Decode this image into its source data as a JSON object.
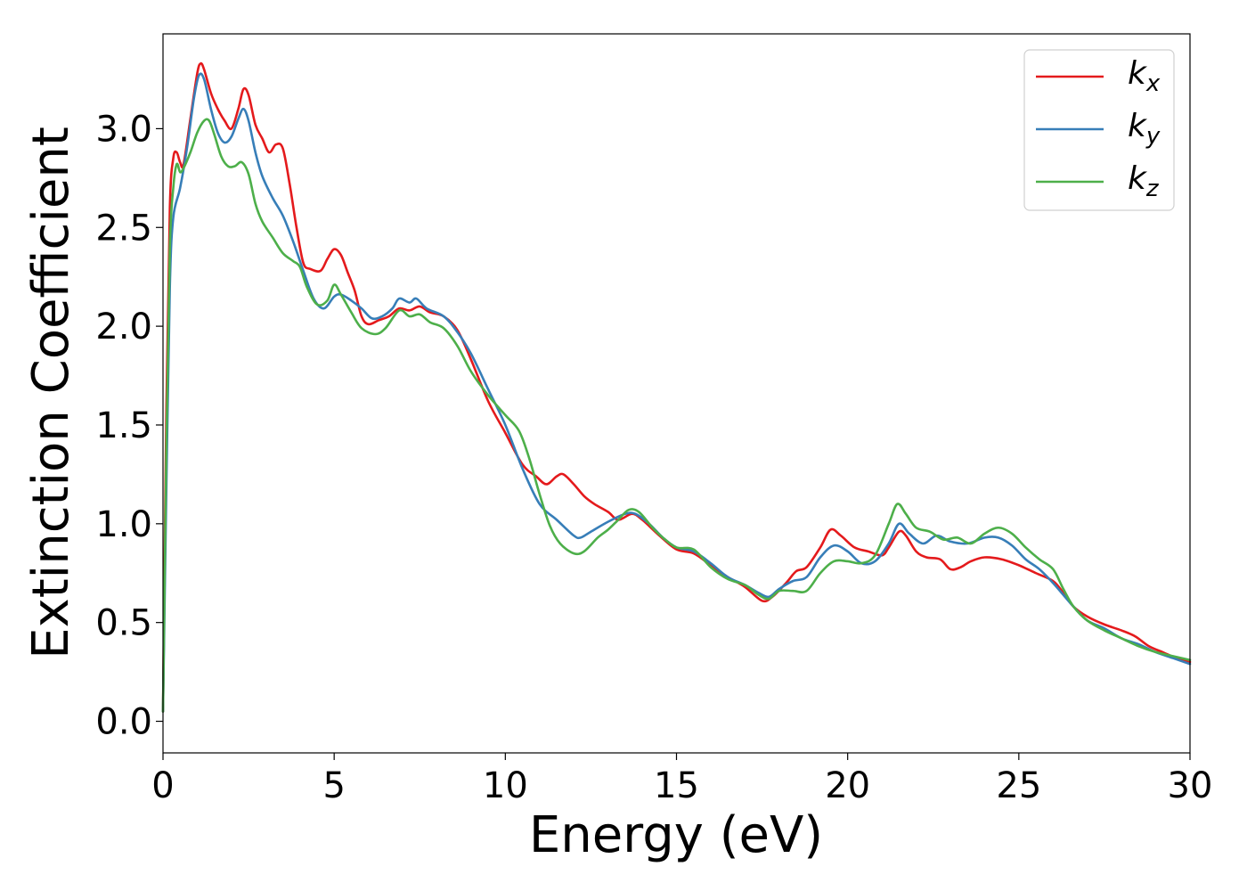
{
  "chart_data": {
    "type": "line",
    "xlabel": "Energy (eV)",
    "ylabel": "Extinction Coefficient",
    "xlim": [
      0,
      30
    ],
    "ylim": [
      -0.16,
      3.48
    ],
    "x_ticks": [
      "0",
      "5",
      "10",
      "15",
      "20",
      "25",
      "30"
    ],
    "x_tick_values": [
      0,
      5,
      10,
      15,
      20,
      25,
      30
    ],
    "y_ticks": [
      "0.0",
      "0.5",
      "1.0",
      "1.5",
      "2.0",
      "2.5",
      "3.0"
    ],
    "y_tick_values": [
      0.0,
      0.5,
      1.0,
      1.5,
      2.0,
      2.5,
      3.0
    ],
    "grid": false,
    "legend_position": "top-right",
    "series": [
      {
        "name_base": "k",
        "name_sub": "x",
        "color": "#e41a1c",
        "points": [
          [
            0,
            0.05
          ],
          [
            0.1,
            1.6
          ],
          [
            0.2,
            2.6
          ],
          [
            0.3,
            2.85
          ],
          [
            0.4,
            2.88
          ],
          [
            0.5,
            2.83
          ],
          [
            0.6,
            2.82
          ],
          [
            0.8,
            3.05
          ],
          [
            1.0,
            3.28
          ],
          [
            1.1,
            3.33
          ],
          [
            1.2,
            3.3
          ],
          [
            1.4,
            3.18
          ],
          [
            1.6,
            3.1
          ],
          [
            1.8,
            3.04
          ],
          [
            2.0,
            3.0
          ],
          [
            2.2,
            3.1
          ],
          [
            2.35,
            3.2
          ],
          [
            2.5,
            3.17
          ],
          [
            2.7,
            3.02
          ],
          [
            2.9,
            2.95
          ],
          [
            3.1,
            2.88
          ],
          [
            3.3,
            2.92
          ],
          [
            3.5,
            2.9
          ],
          [
            3.7,
            2.72
          ],
          [
            3.9,
            2.5
          ],
          [
            4.1,
            2.32
          ],
          [
            4.3,
            2.29
          ],
          [
            4.6,
            2.28
          ],
          [
            4.8,
            2.34
          ],
          [
            5.0,
            2.39
          ],
          [
            5.2,
            2.36
          ],
          [
            5.4,
            2.27
          ],
          [
            5.6,
            2.18
          ],
          [
            5.8,
            2.05
          ],
          [
            6.0,
            2.01
          ],
          [
            6.3,
            2.03
          ],
          [
            6.6,
            2.05
          ],
          [
            6.9,
            2.09
          ],
          [
            7.2,
            2.08
          ],
          [
            7.5,
            2.1
          ],
          [
            7.8,
            2.07
          ],
          [
            8.2,
            2.05
          ],
          [
            8.6,
            1.98
          ],
          [
            9.0,
            1.83
          ],
          [
            9.5,
            1.62
          ],
          [
            10.0,
            1.46
          ],
          [
            10.5,
            1.3
          ],
          [
            10.9,
            1.24
          ],
          [
            11.2,
            1.2
          ],
          [
            11.5,
            1.24
          ],
          [
            11.7,
            1.25
          ],
          [
            12.0,
            1.2
          ],
          [
            12.3,
            1.14
          ],
          [
            12.6,
            1.1
          ],
          [
            13.0,
            1.06
          ],
          [
            13.3,
            1.02
          ],
          [
            13.7,
            1.05
          ],
          [
            14.0,
            1.02
          ],
          [
            14.5,
            0.94
          ],
          [
            15.0,
            0.87
          ],
          [
            15.5,
            0.85
          ],
          [
            16.0,
            0.79
          ],
          [
            16.5,
            0.73
          ],
          [
            17.0,
            0.68
          ],
          [
            17.5,
            0.61
          ],
          [
            17.8,
            0.63
          ],
          [
            18.2,
            0.7
          ],
          [
            18.5,
            0.76
          ],
          [
            18.8,
            0.78
          ],
          [
            19.2,
            0.88
          ],
          [
            19.5,
            0.97
          ],
          [
            19.8,
            0.94
          ],
          [
            20.2,
            0.88
          ],
          [
            20.6,
            0.86
          ],
          [
            21.0,
            0.84
          ],
          [
            21.2,
            0.88
          ],
          [
            21.5,
            0.96
          ],
          [
            21.7,
            0.94
          ],
          [
            22.0,
            0.86
          ],
          [
            22.3,
            0.83
          ],
          [
            22.7,
            0.82
          ],
          [
            23.0,
            0.77
          ],
          [
            23.3,
            0.78
          ],
          [
            23.6,
            0.81
          ],
          [
            24.0,
            0.83
          ],
          [
            24.5,
            0.82
          ],
          [
            25.0,
            0.79
          ],
          [
            25.5,
            0.75
          ],
          [
            26.0,
            0.71
          ],
          [
            26.3,
            0.65
          ],
          [
            26.6,
            0.58
          ],
          [
            27.0,
            0.53
          ],
          [
            27.5,
            0.49
          ],
          [
            28.0,
            0.46
          ],
          [
            28.4,
            0.43
          ],
          [
            28.8,
            0.38
          ],
          [
            29.2,
            0.35
          ],
          [
            29.6,
            0.32
          ],
          [
            30.0,
            0.3
          ]
        ]
      },
      {
        "name_base": "k",
        "name_sub": "y",
        "color": "#377eb8",
        "points": [
          [
            0,
            0.05
          ],
          [
            0.1,
            1.2
          ],
          [
            0.2,
            2.2
          ],
          [
            0.3,
            2.55
          ],
          [
            0.5,
            2.7
          ],
          [
            0.7,
            2.9
          ],
          [
            0.9,
            3.15
          ],
          [
            1.05,
            3.27
          ],
          [
            1.2,
            3.25
          ],
          [
            1.4,
            3.1
          ],
          [
            1.6,
            2.98
          ],
          [
            1.8,
            2.93
          ],
          [
            2.0,
            2.96
          ],
          [
            2.2,
            3.05
          ],
          [
            2.35,
            3.1
          ],
          [
            2.5,
            3.04
          ],
          [
            2.7,
            2.88
          ],
          [
            2.9,
            2.76
          ],
          [
            3.2,
            2.65
          ],
          [
            3.5,
            2.56
          ],
          [
            3.8,
            2.43
          ],
          [
            4.1,
            2.28
          ],
          [
            4.4,
            2.14
          ],
          [
            4.7,
            2.09
          ],
          [
            5.0,
            2.15
          ],
          [
            5.2,
            2.16
          ],
          [
            5.5,
            2.13
          ],
          [
            5.8,
            2.09
          ],
          [
            6.1,
            2.04
          ],
          [
            6.4,
            2.05
          ],
          [
            6.7,
            2.09
          ],
          [
            6.9,
            2.14
          ],
          [
            7.2,
            2.12
          ],
          [
            7.4,
            2.14
          ],
          [
            7.7,
            2.09
          ],
          [
            8.2,
            2.05
          ],
          [
            8.6,
            1.97
          ],
          [
            9.0,
            1.86
          ],
          [
            9.5,
            1.68
          ],
          [
            10.0,
            1.5
          ],
          [
            10.5,
            1.28
          ],
          [
            11.0,
            1.1
          ],
          [
            11.5,
            1.02
          ],
          [
            12.0,
            0.94
          ],
          [
            12.2,
            0.93
          ],
          [
            12.5,
            0.96
          ],
          [
            13.0,
            1.01
          ],
          [
            13.5,
            1.05
          ],
          [
            13.8,
            1.05
          ],
          [
            14.2,
            1.0
          ],
          [
            14.6,
            0.93
          ],
          [
            15.0,
            0.88
          ],
          [
            15.5,
            0.86
          ],
          [
            16.0,
            0.8
          ],
          [
            16.5,
            0.73
          ],
          [
            17.0,
            0.69
          ],
          [
            17.4,
            0.65
          ],
          [
            17.7,
            0.63
          ],
          [
            18.0,
            0.67
          ],
          [
            18.4,
            0.71
          ],
          [
            18.8,
            0.73
          ],
          [
            19.2,
            0.83
          ],
          [
            19.6,
            0.89
          ],
          [
            20.0,
            0.86
          ],
          [
            20.4,
            0.8
          ],
          [
            20.8,
            0.81
          ],
          [
            21.2,
            0.9
          ],
          [
            21.5,
            1.0
          ],
          [
            21.8,
            0.95
          ],
          [
            22.2,
            0.9
          ],
          [
            22.6,
            0.94
          ],
          [
            23.0,
            0.91
          ],
          [
            23.5,
            0.9
          ],
          [
            24.0,
            0.93
          ],
          [
            24.4,
            0.93
          ],
          [
            24.8,
            0.89
          ],
          [
            25.2,
            0.82
          ],
          [
            25.6,
            0.77
          ],
          [
            26.0,
            0.7
          ],
          [
            26.3,
            0.64
          ],
          [
            26.6,
            0.58
          ],
          [
            27.0,
            0.51
          ],
          [
            27.5,
            0.47
          ],
          [
            28.0,
            0.42
          ],
          [
            28.5,
            0.39
          ],
          [
            29.0,
            0.35
          ],
          [
            29.5,
            0.32
          ],
          [
            30.0,
            0.29
          ]
        ]
      },
      {
        "name_base": "k",
        "name_sub": "z",
        "color": "#4daf4a",
        "points": [
          [
            0,
            0.05
          ],
          [
            0.1,
            1.4
          ],
          [
            0.2,
            2.4
          ],
          [
            0.3,
            2.7
          ],
          [
            0.4,
            2.82
          ],
          [
            0.5,
            2.78
          ],
          [
            0.6,
            2.8
          ],
          [
            0.8,
            2.88
          ],
          [
            1.0,
            2.98
          ],
          [
            1.2,
            3.04
          ],
          [
            1.35,
            3.04
          ],
          [
            1.5,
            2.97
          ],
          [
            1.7,
            2.86
          ],
          [
            1.9,
            2.81
          ],
          [
            2.1,
            2.81
          ],
          [
            2.3,
            2.83
          ],
          [
            2.5,
            2.77
          ],
          [
            2.7,
            2.62
          ],
          [
            2.9,
            2.53
          ],
          [
            3.2,
            2.45
          ],
          [
            3.5,
            2.37
          ],
          [
            3.8,
            2.33
          ],
          [
            4.0,
            2.3
          ],
          [
            4.2,
            2.2
          ],
          [
            4.5,
            2.11
          ],
          [
            4.8,
            2.13
          ],
          [
            5.0,
            2.21
          ],
          [
            5.2,
            2.16
          ],
          [
            5.5,
            2.07
          ],
          [
            5.8,
            1.99
          ],
          [
            6.2,
            1.96
          ],
          [
            6.5,
            1.99
          ],
          [
            6.9,
            2.08
          ],
          [
            7.2,
            2.05
          ],
          [
            7.5,
            2.06
          ],
          [
            7.8,
            2.02
          ],
          [
            8.2,
            1.99
          ],
          [
            8.6,
            1.9
          ],
          [
            9.0,
            1.77
          ],
          [
            9.5,
            1.65
          ],
          [
            10.0,
            1.55
          ],
          [
            10.4,
            1.47
          ],
          [
            10.7,
            1.33
          ],
          [
            11.0,
            1.15
          ],
          [
            11.3,
            0.99
          ],
          [
            11.6,
            0.9
          ],
          [
            12.0,
            0.85
          ],
          [
            12.3,
            0.86
          ],
          [
            12.7,
            0.93
          ],
          [
            13.0,
            0.97
          ],
          [
            13.3,
            1.02
          ],
          [
            13.6,
            1.07
          ],
          [
            13.9,
            1.06
          ],
          [
            14.3,
            0.98
          ],
          [
            14.6,
            0.93
          ],
          [
            15.0,
            0.88
          ],
          [
            15.5,
            0.87
          ],
          [
            16.0,
            0.78
          ],
          [
            16.5,
            0.72
          ],
          [
            17.0,
            0.69
          ],
          [
            17.4,
            0.64
          ],
          [
            17.7,
            0.62
          ],
          [
            18.0,
            0.66
          ],
          [
            18.4,
            0.66
          ],
          [
            18.8,
            0.66
          ],
          [
            19.2,
            0.75
          ],
          [
            19.6,
            0.81
          ],
          [
            20.0,
            0.81
          ],
          [
            20.4,
            0.8
          ],
          [
            20.8,
            0.84
          ],
          [
            21.2,
            1.0
          ],
          [
            21.45,
            1.1
          ],
          [
            21.7,
            1.05
          ],
          [
            22.0,
            0.98
          ],
          [
            22.4,
            0.96
          ],
          [
            22.8,
            0.92
          ],
          [
            23.2,
            0.93
          ],
          [
            23.6,
            0.9
          ],
          [
            24.0,
            0.95
          ],
          [
            24.4,
            0.98
          ],
          [
            24.8,
            0.95
          ],
          [
            25.2,
            0.88
          ],
          [
            25.6,
            0.82
          ],
          [
            26.0,
            0.77
          ],
          [
            26.3,
            0.67
          ],
          [
            26.6,
            0.58
          ],
          [
            27.0,
            0.51
          ],
          [
            27.5,
            0.46
          ],
          [
            28.0,
            0.42
          ],
          [
            28.5,
            0.38
          ],
          [
            29.0,
            0.35
          ],
          [
            29.5,
            0.33
          ],
          [
            30.0,
            0.31
          ]
        ]
      }
    ]
  }
}
